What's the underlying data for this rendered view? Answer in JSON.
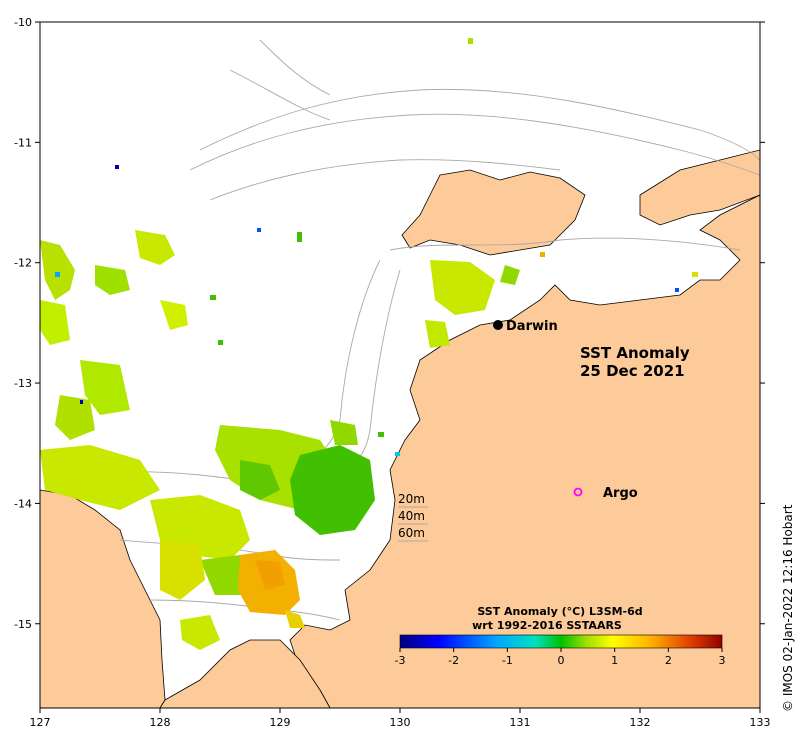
{
  "map": {
    "title_line1": "SST Anomaly",
    "title_line2": "25 Dec 2021",
    "lon_ticks": [
      "127",
      "128",
      "129",
      "130",
      "131",
      "132",
      "133"
    ],
    "lat_ticks": [
      "-10",
      "-11",
      "-12",
      "-13",
      "-14",
      "-15"
    ],
    "lon_range": [
      127,
      133
    ],
    "lat_range": [
      -15.7,
      -10
    ],
    "land_color": "#fdcb9a",
    "contour_color": "#aaaaaa"
  },
  "places": {
    "darwin": "Darwin",
    "argo": "Argo"
  },
  "contour_legend": [
    "20m",
    "40m",
    "60m"
  ],
  "colorbar": {
    "title_line1": "SST Anomaly (°C) L3SM-6d",
    "title_line2": "wrt 1992-2016 SSTAARS",
    "ticks": [
      "-3",
      "-2",
      "-1",
      "0",
      "1",
      "2",
      "3"
    ],
    "range": [
      -3,
      3
    ]
  },
  "credit": "© IMOS 02-Jan-2022 12:16 Hobart"
}
